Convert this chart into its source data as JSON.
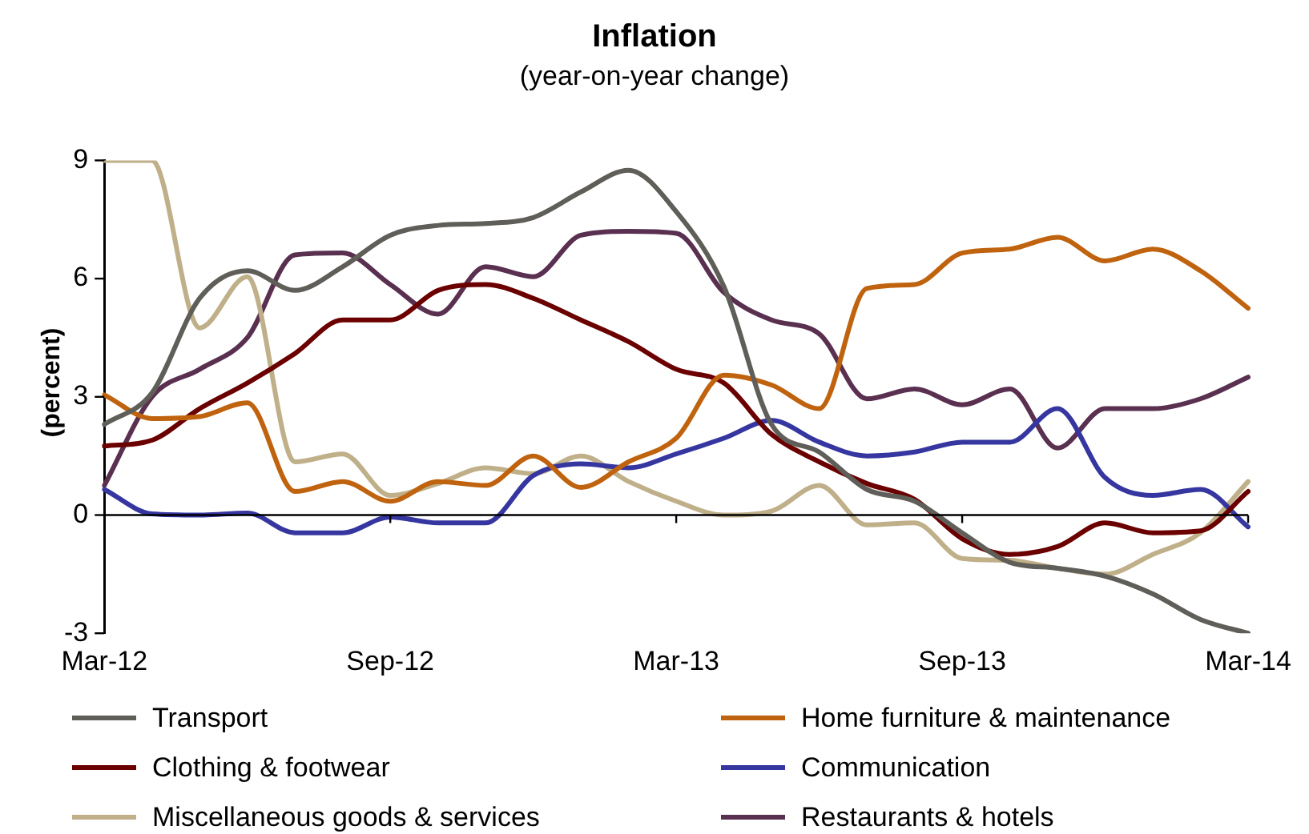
{
  "chart_data": {
    "type": "line",
    "title": "Inflation",
    "subtitle": "(year-on-year change)",
    "ylabel": "(percent)",
    "categories": [
      "Mar-12",
      null,
      null,
      null,
      null,
      null,
      "Sep-12",
      null,
      null,
      null,
      null,
      null,
      "Mar-13",
      null,
      null,
      null,
      null,
      null,
      "Sep-13",
      null,
      null,
      null,
      null,
      null,
      "Mar-14"
    ],
    "ylim": [
      -3,
      9
    ],
    "yticks": [
      -3,
      0,
      3,
      6,
      9
    ],
    "grid": false,
    "ref_lines": [
      {
        "axis": "y",
        "value": 0,
        "color": "#000000",
        "line_style": "solid"
      }
    ],
    "legend": "bottom",
    "marker": "none",
    "line_style": "solid",
    "series": [
      {
        "name": "Transport",
        "color": "#5f5e58",
        "values": [
          2.3,
          3.1,
          5.5,
          6.2,
          5.7,
          6.3,
          7.1,
          7.35,
          7.4,
          7.55,
          8.2,
          8.75,
          7.7,
          5.8,
          2.3,
          1.6,
          0.65,
          0.35,
          -0.45,
          -1.2,
          -1.35,
          -1.55,
          -2.0,
          -2.65,
          -3.0
        ]
      },
      {
        "name": "Home furniture & maintenance",
        "color": "#c0630f",
        "values": [
          3.05,
          2.45,
          2.5,
          2.85,
          0.6,
          0.85,
          0.35,
          0.85,
          0.75,
          1.5,
          0.7,
          1.35,
          1.95,
          3.55,
          3.3,
          2.7,
          5.75,
          5.85,
          6.65,
          6.75,
          7.05,
          6.45,
          6.75,
          6.2,
          5.25
        ]
      },
      {
        "name": "Clothing & footwear",
        "color": "#6b0000",
        "values": [
          1.75,
          1.9,
          2.7,
          3.35,
          4.1,
          4.95,
          4.95,
          5.7,
          5.85,
          5.5,
          4.95,
          4.4,
          3.7,
          3.35,
          2.05,
          1.35,
          0.8,
          0.4,
          -0.6,
          -1.0,
          -0.8,
          -0.2,
          -0.45,
          -0.4,
          0.6
        ]
      },
      {
        "name": "Communication",
        "color": "#3636a0",
        "values": [
          0.65,
          0.03,
          0,
          0.05,
          -0.45,
          -0.45,
          -0.05,
          -0.2,
          -0.2,
          1.0,
          1.3,
          1.2,
          1.55,
          1.95,
          2.4,
          1.85,
          1.5,
          1.6,
          1.85,
          1.85,
          2.7,
          0.95,
          0.5,
          0.65,
          -0.3
        ]
      },
      {
        "name": "Miscellaneous goods & services",
        "color": "#bfb08a",
        "values": [
          9.0,
          9.0,
          4.75,
          6.05,
          1.35,
          1.55,
          0.5,
          0.8,
          1.2,
          1.05,
          1.5,
          0.85,
          0.35,
          0,
          0.1,
          0.75,
          -0.25,
          -0.2,
          -1.1,
          -1.15,
          -1.35,
          -1.5,
          -1.0,
          -0.45,
          0.85
        ]
      },
      {
        "name": "Restaurants & hotels",
        "color": "#5a3050",
        "values": [
          0.75,
          3.0,
          3.7,
          4.5,
          6.6,
          6.65,
          5.85,
          5.1,
          6.3,
          6.05,
          7.1,
          7.2,
          7.15,
          5.65,
          4.95,
          4.6,
          2.95,
          3.2,
          2.8,
          3.2,
          1.7,
          2.7,
          2.7,
          2.95,
          3.5
        ]
      }
    ]
  }
}
